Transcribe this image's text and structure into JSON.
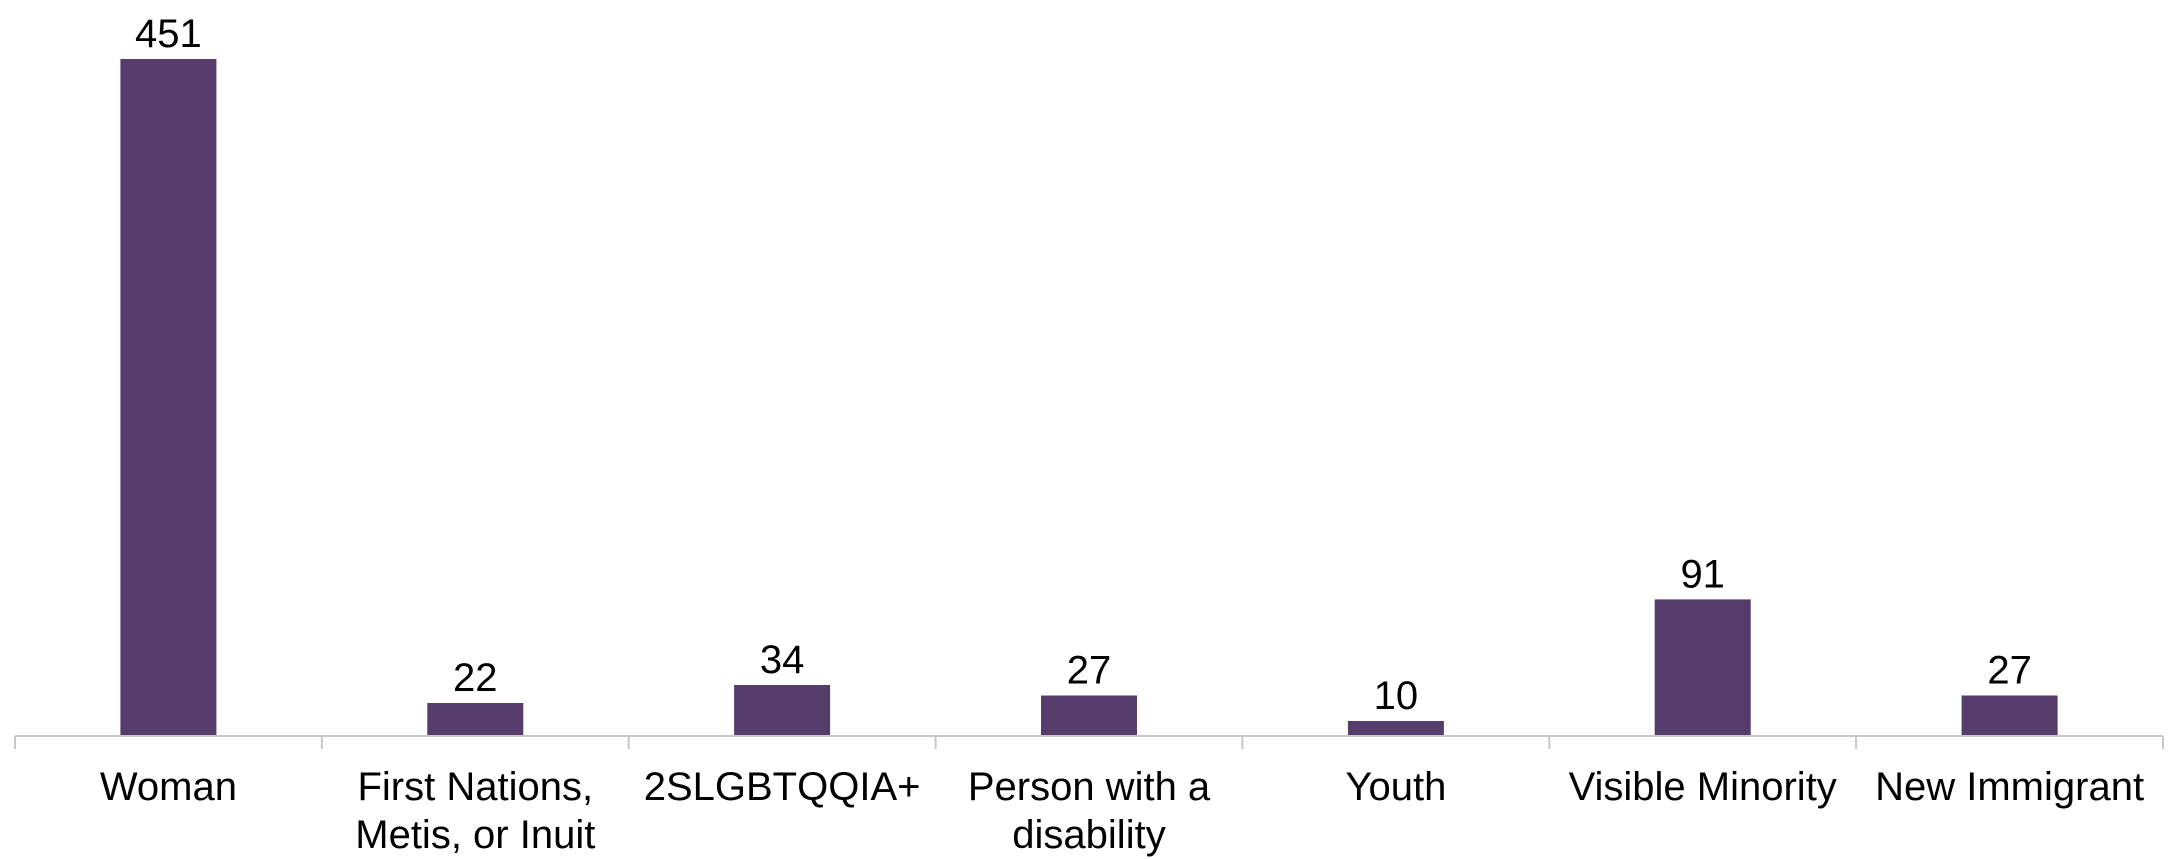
{
  "chart_data": {
    "type": "bar",
    "categories": [
      [
        "Woman"
      ],
      [
        "First Nations,",
        "Metis, or Inuit"
      ],
      [
        "2SLGBTQQIA+"
      ],
      [
        "Person with a",
        "disability"
      ],
      [
        "Youth"
      ],
      [
        "Visible Minority"
      ],
      [
        "New Immigrant"
      ]
    ],
    "values": [
      451,
      22,
      34,
      27,
      10,
      91,
      27
    ],
    "data_labels": [
      "451",
      "22",
      "34",
      "27",
      "10",
      "91",
      "27"
    ],
    "ylim": [
      0,
      451
    ],
    "bar_color": "#553c6b",
    "axis_color": "#c8c8c8",
    "grid": false,
    "legend": "none"
  }
}
